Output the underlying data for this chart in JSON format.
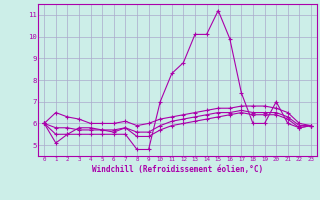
{
  "xlabel": "Windchill (Refroidissement éolien,°C)",
  "background_color": "#cceee8",
  "line_color": "#aa00aa",
  "grid_color": "#aaaacc",
  "hours": [
    0,
    1,
    2,
    3,
    4,
    5,
    6,
    7,
    8,
    9,
    10,
    11,
    12,
    13,
    14,
    15,
    16,
    17,
    18,
    19,
    20,
    21,
    22,
    23
  ],
  "windchill": [
    6.0,
    5.1,
    5.5,
    5.5,
    5.5,
    5.5,
    5.5,
    5.5,
    4.8,
    4.8,
    7.0,
    8.3,
    8.8,
    10.1,
    10.1,
    11.2,
    9.9,
    7.4,
    6.0,
    6.0,
    7.0,
    6.0,
    5.8,
    5.9
  ],
  "line_flat1": [
    6.0,
    6.5,
    6.3,
    6.2,
    6.0,
    6.0,
    6.0,
    6.1,
    5.9,
    6.0,
    6.2,
    6.3,
    6.4,
    6.5,
    6.6,
    6.7,
    6.7,
    6.8,
    6.8,
    6.8,
    6.7,
    6.5,
    6.0,
    5.9
  ],
  "line_flat2": [
    6.0,
    5.8,
    5.8,
    5.7,
    5.7,
    5.7,
    5.7,
    5.8,
    5.6,
    5.6,
    5.9,
    6.1,
    6.2,
    6.3,
    6.4,
    6.5,
    6.5,
    6.6,
    6.5,
    6.5,
    6.5,
    6.3,
    5.9,
    5.9
  ],
  "line_flat3": [
    6.0,
    5.5,
    5.5,
    5.8,
    5.8,
    5.7,
    5.6,
    5.8,
    5.4,
    5.4,
    5.7,
    5.9,
    6.0,
    6.1,
    6.2,
    6.3,
    6.4,
    6.5,
    6.4,
    6.4,
    6.4,
    6.2,
    5.8,
    5.9
  ],
  "ylim": [
    4.5,
    11.5
  ],
  "yticks": [
    5,
    6,
    7,
    8,
    9,
    10,
    11
  ],
  "ylabel_fontsize": 5.0,
  "xlabel_fontsize": 5.5,
  "xtick_fontsize": 4.2,
  "ytick_fontsize": 5.2
}
